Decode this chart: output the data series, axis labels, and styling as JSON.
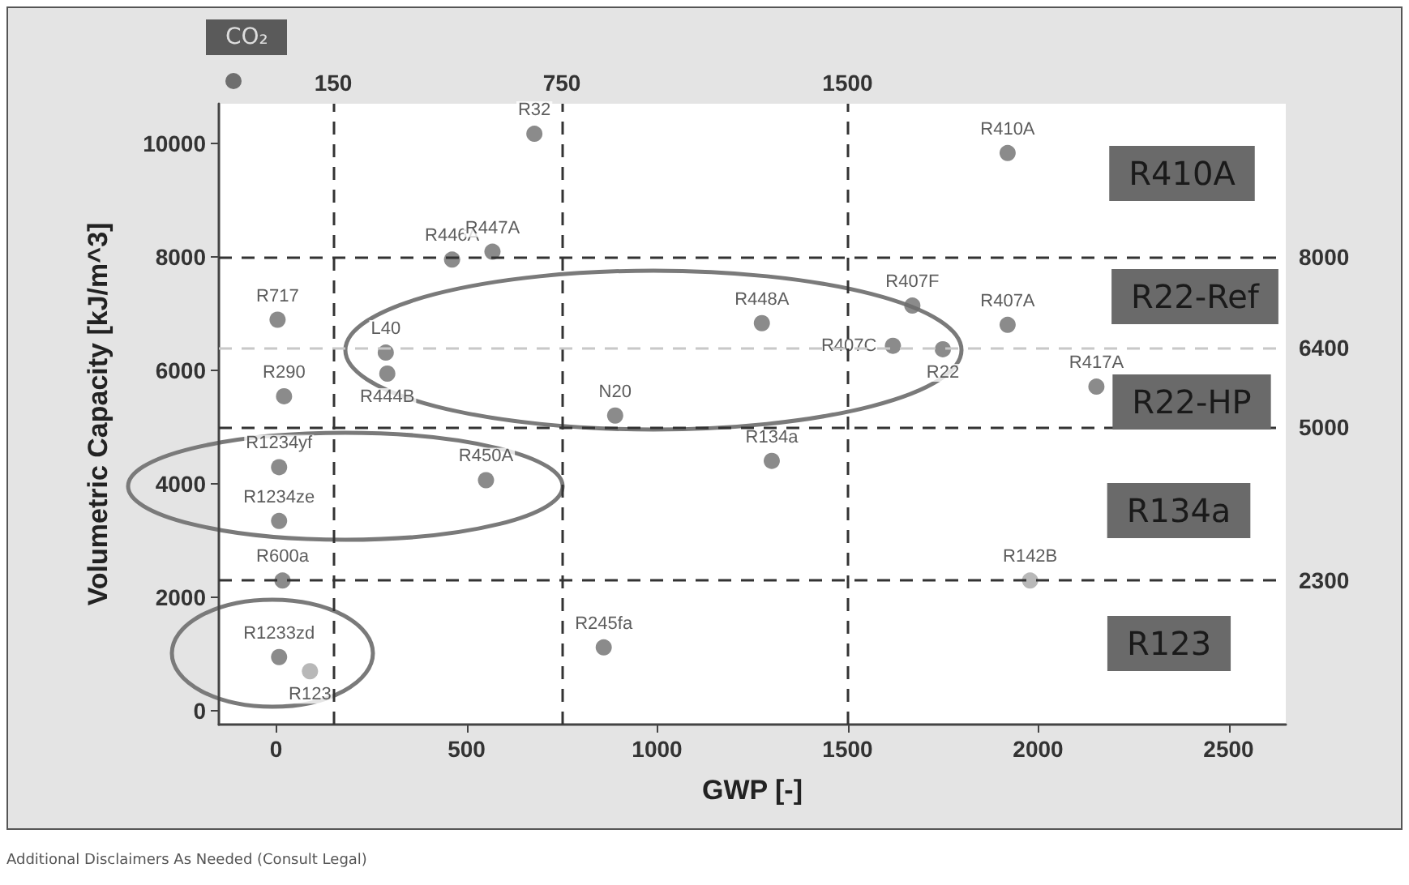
{
  "chart_data": {
    "type": "scatter",
    "xlabel": "GWP [-]",
    "ylabel": "Volumetric Capacity [kJ/m^3]",
    "xlim": [
      -150,
      2650
    ],
    "ylim": [
      -250,
      10700
    ],
    "xticks": [
      0,
      500,
      1000,
      1500,
      2000,
      2500
    ],
    "yticks": [
      0,
      2000,
      4000,
      6000,
      8000,
      10000
    ],
    "grid": false,
    "legend": false,
    "marker": "circle",
    "series": [
      {
        "name": "R32",
        "color": "#6e6e6e",
        "x": [
          678
        ],
        "values": [
          10170
        ]
      },
      {
        "name": "R410A",
        "color": "#6e6e6e",
        "x": [
          1920
        ],
        "values": [
          9830
        ]
      },
      {
        "name": "R446A",
        "color": "#6e6e6e",
        "x": [
          462
        ],
        "values": [
          7950
        ]
      },
      {
        "name": "R447A",
        "color": "#6e6e6e",
        "x": [
          568
        ],
        "values": [
          8090
        ]
      },
      {
        "name": "R717",
        "color": "#6e6e6e",
        "x": [
          4
        ],
        "values": [
          6890
        ]
      },
      {
        "name": "L40",
        "color": "#6e6e6e",
        "x": [
          288
        ],
        "values": [
          6310
        ]
      },
      {
        "name": "R444B",
        "color": "#6e6e6e",
        "x": [
          292
        ],
        "values": [
          5940
        ]
      },
      {
        "name": "R290",
        "color": "#6e6e6e",
        "x": [
          21
        ],
        "values": [
          5540
        ]
      },
      {
        "name": "N20",
        "color": "#6e6e6e",
        "x": [
          890
        ],
        "values": [
          5200
        ]
      },
      {
        "name": "R448A",
        "color": "#6e6e6e",
        "x": [
          1275
        ],
        "values": [
          6830
        ]
      },
      {
        "name": "R407F",
        "color": "#6e6e6e",
        "x": [
          1670
        ],
        "values": [
          7140
        ]
      },
      {
        "name": "R407A",
        "color": "#6e6e6e",
        "x": [
          1920
        ],
        "values": [
          6800
        ]
      },
      {
        "name": "R407C",
        "color": "#6e6e6e",
        "x": [
          1619
        ],
        "values": [
          6430
        ]
      },
      {
        "name": "R22",
        "color": "#6e6e6e",
        "x": [
          1750
        ],
        "values": [
          6370
        ]
      },
      {
        "name": "R417A",
        "color": "#6e6e6e",
        "x": [
          2153
        ],
        "values": [
          5710
        ]
      },
      {
        "name": "R1234yf",
        "color": "#6e6e6e",
        "x": [
          8
        ],
        "values": [
          4290
        ]
      },
      {
        "name": "R450A",
        "color": "#6e6e6e",
        "x": [
          551
        ],
        "values": [
          4060
        ]
      },
      {
        "name": "R1234ze",
        "color": "#6e6e6e",
        "x": [
          8
        ],
        "values": [
          3340
        ]
      },
      {
        "name": "R600a",
        "color": "#6e6e6e",
        "x": [
          17
        ],
        "values": [
          2290
        ]
      },
      {
        "name": "R134a",
        "color": "#6e6e6e",
        "x": [
          1301
        ],
        "values": [
          4400
        ]
      },
      {
        "name": "R142B",
        "color": "#a6a6a6",
        "x": [
          1979
        ],
        "values": [
          2290
        ]
      },
      {
        "name": "R1233zd",
        "color": "#6e6e6e",
        "x": [
          8
        ],
        "values": [
          940
        ]
      },
      {
        "name": "R123",
        "color": "#a6a6a6",
        "x": [
          89
        ],
        "values": [
          690
        ]
      },
      {
        "name": "R245fa",
        "color": "#6e6e6e",
        "x": [
          860
        ],
        "values": [
          1110
        ]
      }
    ],
    "ref_lines": [
      {
        "axis": "x",
        "value": 150,
        "label": "150",
        "color": "#333333",
        "line_style": "dashed"
      },
      {
        "axis": "x",
        "value": 750,
        "label": "750",
        "color": "#333333",
        "line_style": "dashed"
      },
      {
        "axis": "x",
        "value": 1500,
        "label": "1500",
        "color": "#333333",
        "line_style": "dashed"
      },
      {
        "axis": "y",
        "value": 8000,
        "label": "8000",
        "color": "#333333",
        "line_style": "dashed"
      },
      {
        "axis": "y",
        "value": 6400,
        "label": "6400",
        "color": "#c8c8c8",
        "line_style": "dashed"
      },
      {
        "axis": "y",
        "value": 5000,
        "label": "5000",
        "color": "#333333",
        "line_style": "dashed"
      },
      {
        "axis": "y",
        "value": 2300,
        "label": "2300",
        "color": "#333333",
        "line_style": "dashed"
      }
    ],
    "annotations": [
      "R410A",
      "R22-Ref",
      "R22-HP",
      "R134a",
      "R123",
      "CO₂",
      "Additional Disclaimers As Needed (Consult Legal)"
    ]
  }
}
